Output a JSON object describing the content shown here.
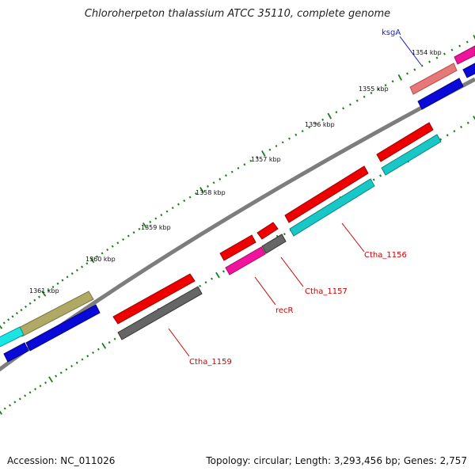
{
  "title": "Chloroherpeton thalassium ATCC 35110, complete genome",
  "accession_text": "Accession: NC_011026",
  "summary_text": "Topology: circular; Length: 3,293,456 bp; Genes: 2,757",
  "scale_labels": [
    "1354 kbp",
    "1355 kbp",
    "1356 kbp",
    "1357 kbp",
    "1358 kbp",
    "1359 kbp",
    "1360 kbp",
    "1361 kbp"
  ],
  "gene_labels": {
    "ksgA": "ksgA",
    "ctha1156": "Ctha_1156",
    "ctha1157": "Ctha_1157",
    "recR": "recR",
    "ctha1159": "Ctha_1159"
  },
  "colors": {
    "backbone": "#7d7d7d",
    "cds_red": "#ee0000",
    "cds_cyan": "#19c7c7",
    "cds_blue": "#0a0ad8",
    "cds_gray": "#666666",
    "cds_magenta": "#f0139b",
    "cds_pink": "#e67878",
    "cds_olive": "#b0a865",
    "tick_green": "#1b7d1b",
    "label_red": "#cc0000",
    "label_blue": "#1a1acc"
  }
}
